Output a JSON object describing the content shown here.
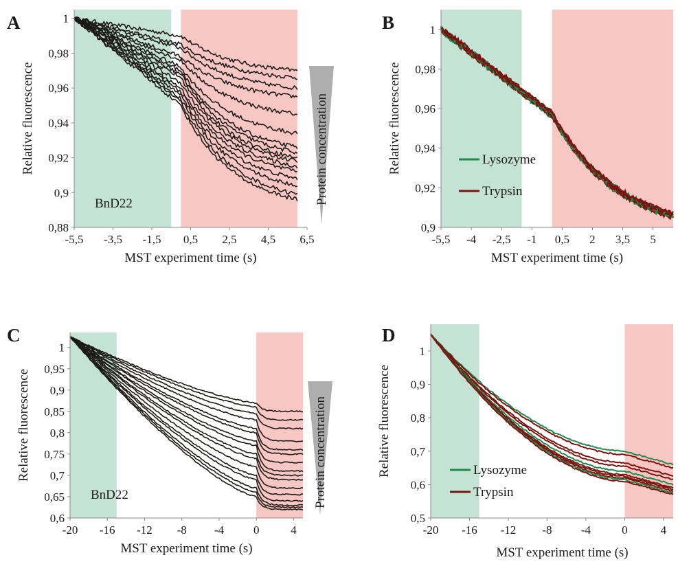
{
  "colors": {
    "pre_zone": "#c4e3d4",
    "laser_zone": "#f9c7c3",
    "curve_dark": "#1c1a16",
    "lysozyme": "#1f8a4c",
    "trypsin": "#7a1410",
    "gradient": "#9a9a9a"
  },
  "chart_data": [
    {
      "panel": "A",
      "type": "line",
      "ylabel": "Relative fluorescence",
      "xlabel": "MST experiment time (s)",
      "xlim": [
        -5.5,
        6.5
      ],
      "ylim": [
        0.88,
        1.005
      ],
      "xticks": [
        -5.5,
        -3.5,
        -1.5,
        0.5,
        2.5,
        4.5,
        6.5
      ],
      "xtick_labels": [
        "-5,5",
        "-3,5",
        "-1,5",
        "0,5",
        "2,5",
        "4,5",
        "6,5"
      ],
      "yticks": [
        0.88,
        0.9,
        0.92,
        0.94,
        0.96,
        0.98,
        1
      ],
      "ytick_labels": [
        "0,88",
        "0,9",
        "0,92",
        "0,94",
        "0,96",
        "0,98",
        "1"
      ],
      "shaded_regions": [
        {
          "kind": "pre",
          "x": [
            -5.5,
            -0.5
          ]
        },
        {
          "kind": "laser",
          "x": [
            0,
            6
          ]
        }
      ],
      "annotation": "BnD22",
      "gradient_label": "Protein concentration",
      "series_style": "dark",
      "series_count": 16,
      "series_end_at_zero": [
        0.99,
        0.985,
        0.983,
        0.978,
        0.976,
        0.972,
        0.97,
        0.968,
        0.966,
        0.963,
        0.96,
        0.958,
        0.956,
        0.954,
        0.952,
        0.95
      ],
      "series_final": [
        0.97,
        0.966,
        0.96,
        0.955,
        0.945,
        0.934,
        0.926,
        0.923,
        0.92,
        0.918,
        0.915,
        0.912,
        0.908,
        0.904,
        0.899,
        0.896
      ],
      "x_start": -5.5,
      "x_switch": 0,
      "x_end": 6,
      "y_start": 1
    },
    {
      "panel": "B",
      "type": "line",
      "ylabel": "Relative fluorescence",
      "xlabel": "MST experiment time (s)",
      "xlim": [
        -5.5,
        6
      ],
      "ylim": [
        0.9,
        1.01
      ],
      "xticks": [
        -5.5,
        -4,
        -2.5,
        -1,
        0.5,
        2,
        3.5,
        5
      ],
      "xtick_labels": [
        "-5,5",
        "-4",
        "-2,5",
        "-1",
        "0,5",
        "2",
        "3,5",
        "5"
      ],
      "yticks": [
        0.9,
        0.92,
        0.94,
        0.96,
        0.98,
        1
      ],
      "ytick_labels": [
        "0,9",
        "0,92",
        "0,94",
        "0,96",
        "0,98",
        "1"
      ],
      "shaded_regions": [
        {
          "kind": "pre",
          "x": [
            -5.5,
            -1.5
          ]
        },
        {
          "kind": "laser",
          "x": [
            0,
            6
          ]
        }
      ],
      "legend": [
        "Lysozyme",
        "Trypsin"
      ],
      "legend_position": "left",
      "series_style": "overlap",
      "series_count": 12,
      "x_start": -5.5,
      "x_end": 6,
      "y_start": 1,
      "y_pre_end": 0.957,
      "y_final": 0.906
    },
    {
      "panel": "C",
      "type": "line",
      "ylabel": "Relative fluorescence",
      "xlabel": "MST experiment time (s)",
      "xlim": [
        -20,
        5
      ],
      "ylim": [
        0.6,
        1.035
      ],
      "xticks": [
        -20,
        -16,
        -12,
        -8,
        -4,
        0,
        4
      ],
      "xtick_labels": [
        "-20",
        "-16",
        "-12",
        "-8",
        "-4",
        "0",
        "4"
      ],
      "yticks": [
        0.6,
        0.65,
        0.7,
        0.75,
        0.8,
        0.85,
        0.9,
        0.95,
        1
      ],
      "ytick_labels": [
        "0,6",
        "0,65",
        "0,7",
        "0,75",
        "0,8",
        "0,85",
        "0,9",
        "0,95",
        "1"
      ],
      "shaded_regions": [
        {
          "kind": "pre",
          "x": [
            -20,
            -15
          ]
        },
        {
          "kind": "laser",
          "x": [
            0,
            5
          ]
        }
      ],
      "annotation": "BnD22",
      "gradient_label": "Protein concentration",
      "series_style": "dark",
      "series_count": 16,
      "series_end_at_zero": [
        0.87,
        0.86,
        0.845,
        0.83,
        0.81,
        0.8,
        0.78,
        0.77,
        0.75,
        0.74,
        0.72,
        0.7,
        0.69,
        0.67,
        0.66,
        0.65
      ],
      "series_final": [
        0.85,
        0.83,
        0.81,
        0.78,
        0.76,
        0.75,
        0.73,
        0.71,
        0.7,
        0.69,
        0.67,
        0.655,
        0.64,
        0.63,
        0.625,
        0.62
      ],
      "x_start": -20,
      "x_switch": 0,
      "x_end": 5,
      "y_start": 1.025
    },
    {
      "panel": "D",
      "type": "line",
      "ylabel": "Relative fluorescence",
      "xlabel": "MST experiment time (s)",
      "xlim": [
        -20,
        5
      ],
      "ylim": [
        0.5,
        1.08
      ],
      "xticks": [
        -20,
        -16,
        -12,
        -8,
        -4,
        0,
        4
      ],
      "xtick_labels": [
        "-20",
        "-16",
        "-12",
        "-8",
        "-4",
        "0",
        "4"
      ],
      "yticks": [
        0.5,
        0.6,
        0.7,
        0.8,
        0.9,
        1
      ],
      "ytick_labels": [
        "0,5",
        "0,6",
        "0,7",
        "0,8",
        "0,9",
        "1"
      ],
      "shaded_regions": [
        {
          "kind": "pre",
          "x": [
            -20,
            -15
          ]
        },
        {
          "kind": "laser",
          "x": [
            0,
            5
          ]
        }
      ],
      "legend": [
        "Lysozyme",
        "Trypsin"
      ],
      "legend_position": "bottom-left",
      "series_style": "overlap",
      "series_count": 10,
      "x_start": -20,
      "x_end": 5,
      "y_start": 1.05,
      "series_final": [
        0.66,
        0.65,
        0.625,
        0.615,
        0.6,
        0.59,
        0.585,
        0.58,
        0.575,
        0.57
      ]
    }
  ]
}
